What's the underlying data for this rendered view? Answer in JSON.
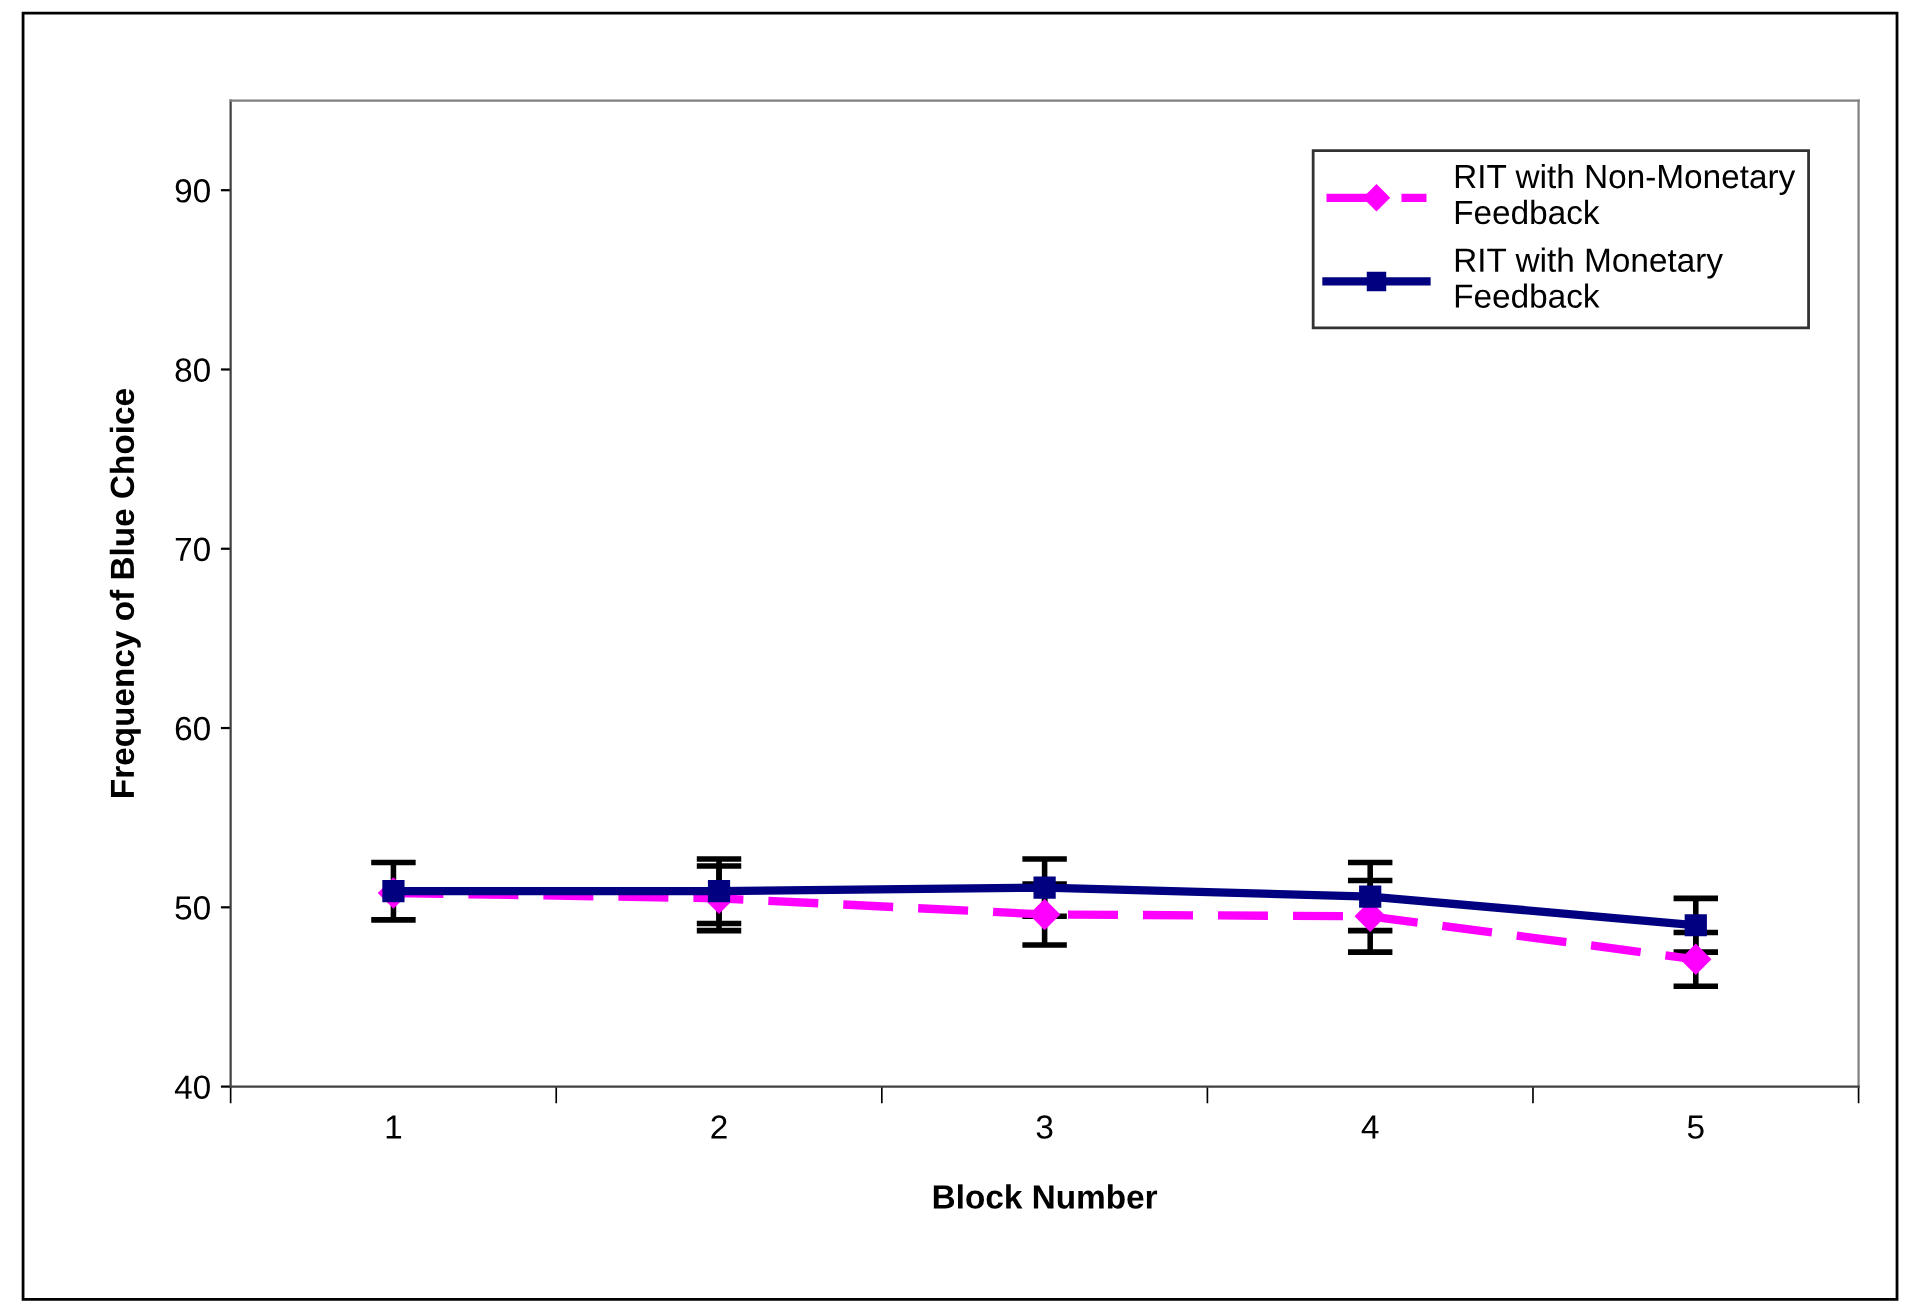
{
  "chart_data": {
    "type": "line",
    "xlabel": "Block Number",
    "ylabel": "Frequency of Blue Choice",
    "categories": [
      "1",
      "2",
      "3",
      "4",
      "5"
    ],
    "series": [
      {
        "name": "RIT with Non-Monetary\nFeedback",
        "color": "#ff00ff",
        "marker": "diamond",
        "line_style": "dashed",
        "values": [
          50.8,
          50.5,
          49.6,
          49.5,
          47.1
        ],
        "errors": [
          null,
          1.8,
          1.7,
          2.0,
          1.5
        ]
      },
      {
        "name": "RIT with Monetary\nFeedback",
        "color": "#000080",
        "marker": "square",
        "line_style": "solid",
        "values": [
          50.9,
          50.9,
          51.1,
          50.6,
          49.0
        ],
        "errors": [
          1.6,
          1.8,
          1.6,
          1.9,
          1.5
        ]
      }
    ],
    "ylim": [
      40,
      95
    ],
    "yticks": [
      40,
      50,
      60,
      70,
      80,
      90
    ],
    "grid": false,
    "legend": "top right"
  }
}
